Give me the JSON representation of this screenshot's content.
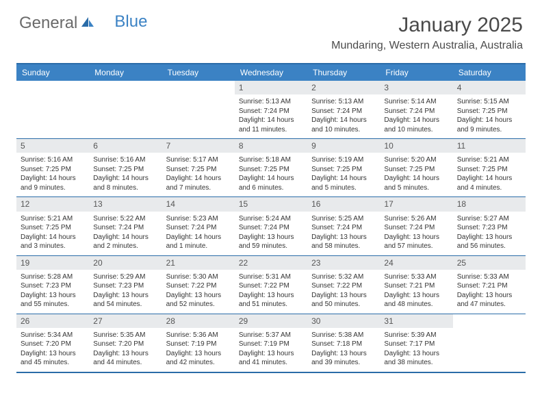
{
  "logo": {
    "text_a": "General",
    "text_b": "Blue"
  },
  "title": "January 2025",
  "location": "Mundaring, Western Australia, Australia",
  "colors": {
    "header_bg": "#3b82c4",
    "header_text": "#ffffff",
    "border": "#2a6ca8",
    "daynum_bg": "#e8eaec",
    "body_text": "#333333",
    "title_text": "#4a4a4a",
    "logo_gray": "#6a6a6a",
    "logo_blue": "#3b82c4"
  },
  "typography": {
    "title_fontsize": 30,
    "location_fontsize": 16,
    "dayheader_fontsize": 12,
    "cell_fontsize": 10
  },
  "day_labels": [
    "Sunday",
    "Monday",
    "Tuesday",
    "Wednesday",
    "Thursday",
    "Friday",
    "Saturday"
  ],
  "weeks": [
    [
      {
        "n": "",
        "sr": "",
        "ss": "",
        "d1": "",
        "d2": ""
      },
      {
        "n": "",
        "sr": "",
        "ss": "",
        "d1": "",
        "d2": ""
      },
      {
        "n": "",
        "sr": "",
        "ss": "",
        "d1": "",
        "d2": ""
      },
      {
        "n": "1",
        "sr": "Sunrise: 5:13 AM",
        "ss": "Sunset: 7:24 PM",
        "d1": "Daylight: 14 hours",
        "d2": "and 11 minutes."
      },
      {
        "n": "2",
        "sr": "Sunrise: 5:13 AM",
        "ss": "Sunset: 7:24 PM",
        "d1": "Daylight: 14 hours",
        "d2": "and 10 minutes."
      },
      {
        "n": "3",
        "sr": "Sunrise: 5:14 AM",
        "ss": "Sunset: 7:24 PM",
        "d1": "Daylight: 14 hours",
        "d2": "and 10 minutes."
      },
      {
        "n": "4",
        "sr": "Sunrise: 5:15 AM",
        "ss": "Sunset: 7:25 PM",
        "d1": "Daylight: 14 hours",
        "d2": "and 9 minutes."
      }
    ],
    [
      {
        "n": "5",
        "sr": "Sunrise: 5:16 AM",
        "ss": "Sunset: 7:25 PM",
        "d1": "Daylight: 14 hours",
        "d2": "and 9 minutes."
      },
      {
        "n": "6",
        "sr": "Sunrise: 5:16 AM",
        "ss": "Sunset: 7:25 PM",
        "d1": "Daylight: 14 hours",
        "d2": "and 8 minutes."
      },
      {
        "n": "7",
        "sr": "Sunrise: 5:17 AM",
        "ss": "Sunset: 7:25 PM",
        "d1": "Daylight: 14 hours",
        "d2": "and 7 minutes."
      },
      {
        "n": "8",
        "sr": "Sunrise: 5:18 AM",
        "ss": "Sunset: 7:25 PM",
        "d1": "Daylight: 14 hours",
        "d2": "and 6 minutes."
      },
      {
        "n": "9",
        "sr": "Sunrise: 5:19 AM",
        "ss": "Sunset: 7:25 PM",
        "d1": "Daylight: 14 hours",
        "d2": "and 5 minutes."
      },
      {
        "n": "10",
        "sr": "Sunrise: 5:20 AM",
        "ss": "Sunset: 7:25 PM",
        "d1": "Daylight: 14 hours",
        "d2": "and 5 minutes."
      },
      {
        "n": "11",
        "sr": "Sunrise: 5:21 AM",
        "ss": "Sunset: 7:25 PM",
        "d1": "Daylight: 14 hours",
        "d2": "and 4 minutes."
      }
    ],
    [
      {
        "n": "12",
        "sr": "Sunrise: 5:21 AM",
        "ss": "Sunset: 7:25 PM",
        "d1": "Daylight: 14 hours",
        "d2": "and 3 minutes."
      },
      {
        "n": "13",
        "sr": "Sunrise: 5:22 AM",
        "ss": "Sunset: 7:24 PM",
        "d1": "Daylight: 14 hours",
        "d2": "and 2 minutes."
      },
      {
        "n": "14",
        "sr": "Sunrise: 5:23 AM",
        "ss": "Sunset: 7:24 PM",
        "d1": "Daylight: 14 hours",
        "d2": "and 1 minute."
      },
      {
        "n": "15",
        "sr": "Sunrise: 5:24 AM",
        "ss": "Sunset: 7:24 PM",
        "d1": "Daylight: 13 hours",
        "d2": "and 59 minutes."
      },
      {
        "n": "16",
        "sr": "Sunrise: 5:25 AM",
        "ss": "Sunset: 7:24 PM",
        "d1": "Daylight: 13 hours",
        "d2": "and 58 minutes."
      },
      {
        "n": "17",
        "sr": "Sunrise: 5:26 AM",
        "ss": "Sunset: 7:24 PM",
        "d1": "Daylight: 13 hours",
        "d2": "and 57 minutes."
      },
      {
        "n": "18",
        "sr": "Sunrise: 5:27 AM",
        "ss": "Sunset: 7:23 PM",
        "d1": "Daylight: 13 hours",
        "d2": "and 56 minutes."
      }
    ],
    [
      {
        "n": "19",
        "sr": "Sunrise: 5:28 AM",
        "ss": "Sunset: 7:23 PM",
        "d1": "Daylight: 13 hours",
        "d2": "and 55 minutes."
      },
      {
        "n": "20",
        "sr": "Sunrise: 5:29 AM",
        "ss": "Sunset: 7:23 PM",
        "d1": "Daylight: 13 hours",
        "d2": "and 54 minutes."
      },
      {
        "n": "21",
        "sr": "Sunrise: 5:30 AM",
        "ss": "Sunset: 7:22 PM",
        "d1": "Daylight: 13 hours",
        "d2": "and 52 minutes."
      },
      {
        "n": "22",
        "sr": "Sunrise: 5:31 AM",
        "ss": "Sunset: 7:22 PM",
        "d1": "Daylight: 13 hours",
        "d2": "and 51 minutes."
      },
      {
        "n": "23",
        "sr": "Sunrise: 5:32 AM",
        "ss": "Sunset: 7:22 PM",
        "d1": "Daylight: 13 hours",
        "d2": "and 50 minutes."
      },
      {
        "n": "24",
        "sr": "Sunrise: 5:33 AM",
        "ss": "Sunset: 7:21 PM",
        "d1": "Daylight: 13 hours",
        "d2": "and 48 minutes."
      },
      {
        "n": "25",
        "sr": "Sunrise: 5:33 AM",
        "ss": "Sunset: 7:21 PM",
        "d1": "Daylight: 13 hours",
        "d2": "and 47 minutes."
      }
    ],
    [
      {
        "n": "26",
        "sr": "Sunrise: 5:34 AM",
        "ss": "Sunset: 7:20 PM",
        "d1": "Daylight: 13 hours",
        "d2": "and 45 minutes."
      },
      {
        "n": "27",
        "sr": "Sunrise: 5:35 AM",
        "ss": "Sunset: 7:20 PM",
        "d1": "Daylight: 13 hours",
        "d2": "and 44 minutes."
      },
      {
        "n": "28",
        "sr": "Sunrise: 5:36 AM",
        "ss": "Sunset: 7:19 PM",
        "d1": "Daylight: 13 hours",
        "d2": "and 42 minutes."
      },
      {
        "n": "29",
        "sr": "Sunrise: 5:37 AM",
        "ss": "Sunset: 7:19 PM",
        "d1": "Daylight: 13 hours",
        "d2": "and 41 minutes."
      },
      {
        "n": "30",
        "sr": "Sunrise: 5:38 AM",
        "ss": "Sunset: 7:18 PM",
        "d1": "Daylight: 13 hours",
        "d2": "and 39 minutes."
      },
      {
        "n": "31",
        "sr": "Sunrise: 5:39 AM",
        "ss": "Sunset: 7:17 PM",
        "d1": "Daylight: 13 hours",
        "d2": "and 38 minutes."
      },
      {
        "n": "",
        "sr": "",
        "ss": "",
        "d1": "",
        "d2": ""
      }
    ]
  ]
}
